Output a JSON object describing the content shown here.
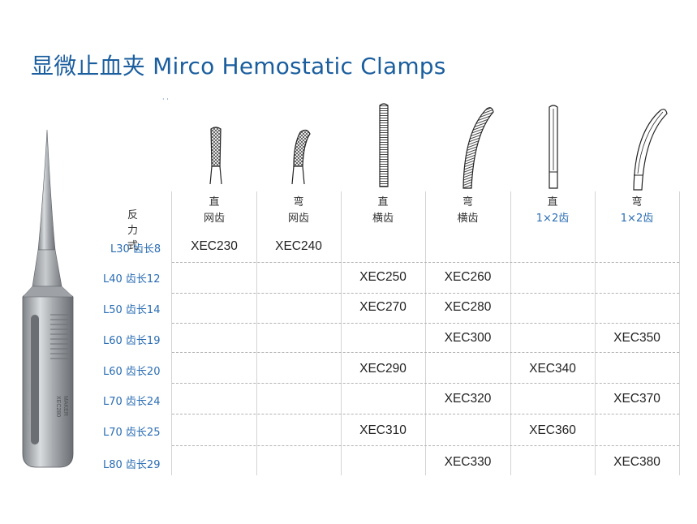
{
  "title": "显微止血夹 Mirco Hemostatic Clamps",
  "tiny_marks": "·  ·",
  "row_header": "反力式",
  "columns": [
    {
      "shape": "直",
      "teeth": "网齿",
      "teeth_blue": false,
      "tip_icon": "straight-mesh-tip-icon"
    },
    {
      "shape": "弯",
      "teeth": "网齿",
      "teeth_blue": false,
      "tip_icon": "curved-mesh-tip-icon"
    },
    {
      "shape": "直",
      "teeth": "横齿",
      "teeth_blue": false,
      "tip_icon": "straight-serrated-tip-icon"
    },
    {
      "shape": "弯",
      "teeth": "横齿",
      "teeth_blue": false,
      "tip_icon": "curved-serrated-tip-icon"
    },
    {
      "shape": "直",
      "teeth": "1×2齿",
      "teeth_blue": true,
      "tip_icon": "straight-1x2-tip-icon"
    },
    {
      "shape": "弯",
      "teeth": "1×2齿",
      "teeth_blue": true,
      "tip_icon": "curved-1x2-tip-icon"
    }
  ],
  "rows": [
    {
      "label": "L30 齿长8",
      "cells": [
        "XEC230",
        "XEC240",
        "",
        "",
        "",
        ""
      ]
    },
    {
      "label": "L40 齿长12",
      "cells": [
        "",
        "",
        "XEC250",
        "XEC260",
        "",
        ""
      ]
    },
    {
      "label": "L50 齿长14",
      "cells": [
        "",
        "",
        "XEC270",
        "XEC280",
        "",
        ""
      ]
    },
    {
      "label": "L60 齿长19",
      "cells": [
        "",
        "",
        "",
        "XEC300",
        "",
        "XEC350"
      ]
    },
    {
      "label": "L60 齿长20",
      "cells": [
        "",
        "",
        "XEC290",
        "",
        "XEC340",
        ""
      ]
    },
    {
      "label": "L70 齿长24",
      "cells": [
        "",
        "",
        "",
        "XEC320",
        "",
        "XEC370"
      ]
    },
    {
      "label": "L70 齿长25",
      "cells": [
        "",
        "",
        "XEC310",
        "",
        "XEC360",
        ""
      ]
    },
    {
      "label": "L80 齿长29",
      "cells": [
        "",
        "",
        "",
        "XEC330",
        "",
        "XEC380"
      ]
    }
  ],
  "colors": {
    "brand_blue": "#1a5e9e",
    "label_blue": "#2a6db3",
    "grid": "#d4d4d4"
  },
  "photo": {
    "engraving_line1": "XEC280",
    "engraving_line2": "MAKER"
  }
}
